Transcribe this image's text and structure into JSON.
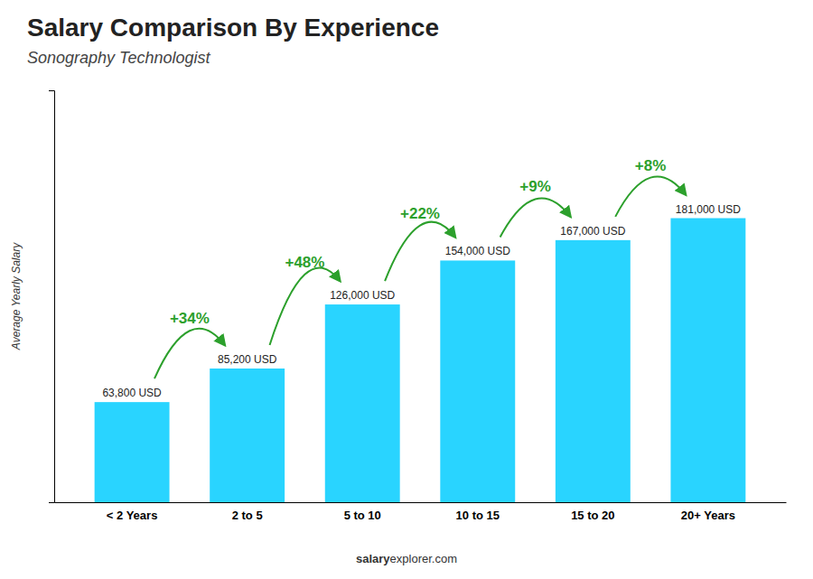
{
  "chart_data": {
    "type": "bar",
    "title": "Salary Comparison By Experience",
    "subtitle": "Sonography Technologist",
    "categories": [
      "< 2 Years",
      "2 to 5",
      "5 to 10",
      "10 to 15",
      "15 to 20",
      "20+ Years"
    ],
    "values": [
      63800,
      85200,
      126000,
      154000,
      167000,
      181000
    ],
    "value_labels": [
      "63,800 USD",
      "85,200 USD",
      "126,000 USD",
      "154,000 USD",
      "167,000 USD",
      "181,000 USD"
    ],
    "data_labels": true,
    "pct_changes": [
      "+34%",
      "+48%",
      "+22%",
      "+9%",
      "+8%"
    ],
    "color": "#29d4ff",
    "ylabel": "Average Yearly Salary",
    "ylim": [
      0,
      262450
    ],
    "tick_labels": "x",
    "grid": false,
    "footer": [
      "salary",
      "explorer.com"
    ]
  }
}
